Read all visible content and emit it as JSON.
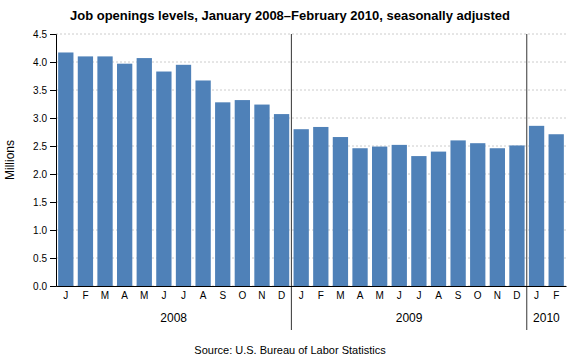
{
  "chart_data": {
    "type": "bar",
    "title": "Job openings levels, January 2008–February 2010, seasonally adjusted",
    "ylabel": "Millions",
    "source": "Source: U.S. Bureau of Labor Statistics",
    "categories": [
      "J",
      "F",
      "M",
      "A",
      "M",
      "J",
      "J",
      "A",
      "S",
      "O",
      "N",
      "D",
      "J",
      "F",
      "M",
      "A",
      "M",
      "J",
      "J",
      "A",
      "S",
      "O",
      "N",
      "D",
      "J",
      "F"
    ],
    "values": [
      4.17,
      4.1,
      4.1,
      3.97,
      4.07,
      3.83,
      3.95,
      3.67,
      3.28,
      3.32,
      3.24,
      3.07,
      2.8,
      2.84,
      2.66,
      2.46,
      2.49,
      2.52,
      2.32,
      2.4,
      2.6,
      2.55,
      2.46,
      2.51,
      2.86,
      2.71
    ],
    "group_labels": [
      "2008",
      "2009",
      "2010"
    ],
    "color": "#4F81B8",
    "ylim": [
      0,
      4.5
    ],
    "yticks": [
      {
        "value": 0.0,
        "label": "0.0"
      },
      0.5,
      {
        "value": 1.0,
        "label": "1.0"
      },
      1.5,
      {
        "value": 2.0,
        "label": "2.0"
      },
      2.5,
      {
        "value": 3.0,
        "label": "3.0"
      },
      3.5,
      {
        "value": 4.0,
        "label": "4.0"
      },
      4.5
    ],
    "grid": true
  }
}
